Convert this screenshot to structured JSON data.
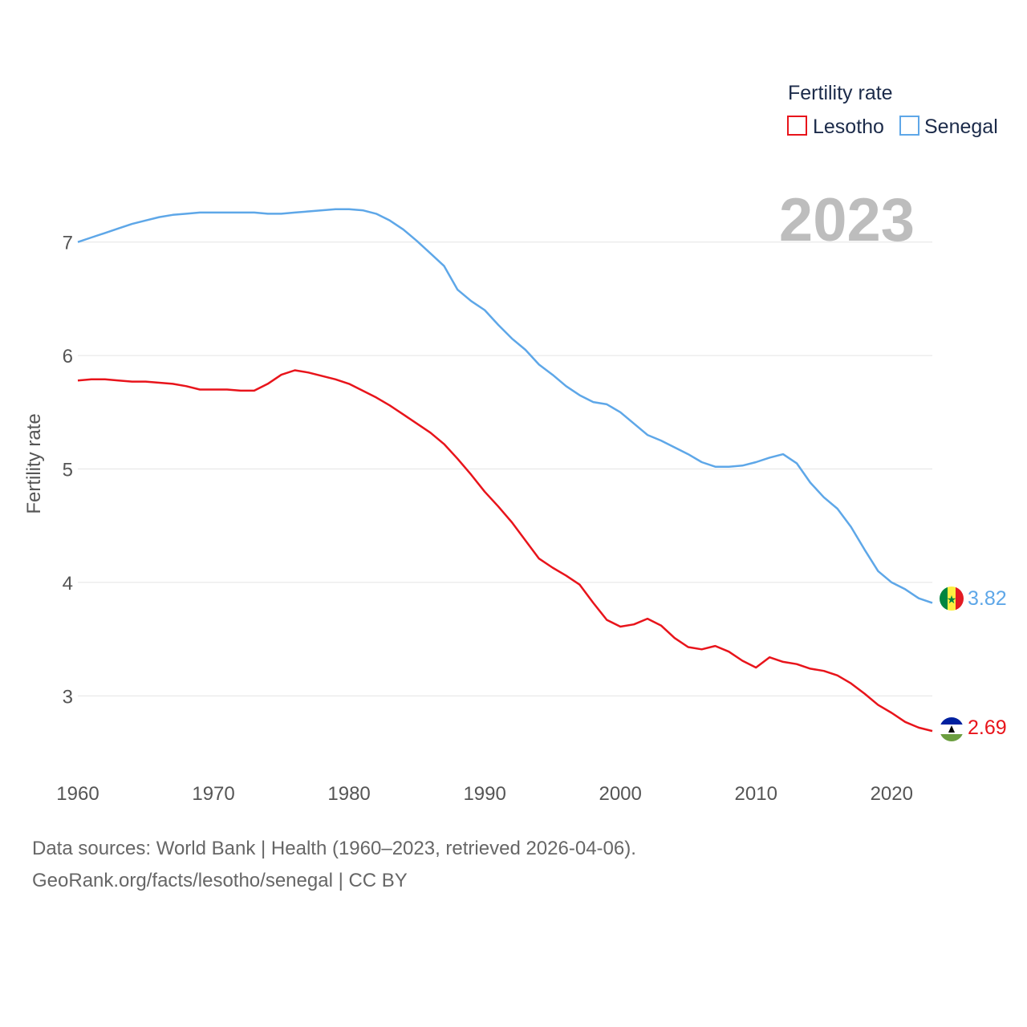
{
  "chart_data": {
    "type": "line",
    "title": "",
    "current_year": "2023",
    "xlabel": "",
    "ylabel": "Fertility rate",
    "xlim": [
      1960,
      2023
    ],
    "ylim": [
      2.5,
      7.5
    ],
    "x_ticks": [
      "1960",
      "1970",
      "1980",
      "1990",
      "2000",
      "2010",
      "2020"
    ],
    "y_ticks": [
      "3",
      "4",
      "5",
      "6",
      "7"
    ],
    "legend": {
      "title": "Fertility rate",
      "placement": "top-right"
    },
    "x": [
      1960,
      1961,
      1962,
      1963,
      1964,
      1965,
      1966,
      1967,
      1968,
      1969,
      1970,
      1971,
      1972,
      1973,
      1974,
      1975,
      1976,
      1977,
      1978,
      1979,
      1980,
      1981,
      1982,
      1983,
      1984,
      1985,
      1986,
      1987,
      1988,
      1989,
      1990,
      1991,
      1992,
      1993,
      1994,
      1995,
      1996,
      1997,
      1998,
      1999,
      2000,
      2001,
      2002,
      2003,
      2004,
      2005,
      2006,
      2007,
      2008,
      2009,
      2010,
      2011,
      2012,
      2013,
      2014,
      2015,
      2016,
      2017,
      2018,
      2019,
      2020,
      2021,
      2022,
      2023
    ],
    "series": [
      {
        "name": "Lesotho",
        "color": "#e8141b",
        "end_label": "2.69",
        "flag": "lesotho-flag-icon",
        "values": [
          5.78,
          5.79,
          5.79,
          5.78,
          5.77,
          5.77,
          5.76,
          5.75,
          5.73,
          5.7,
          5.7,
          5.7,
          5.69,
          5.69,
          5.75,
          5.83,
          5.87,
          5.85,
          5.82,
          5.79,
          5.75,
          5.69,
          5.63,
          5.56,
          5.48,
          5.4,
          5.32,
          5.22,
          5.09,
          4.95,
          4.8,
          4.67,
          4.53,
          4.37,
          4.21,
          4.13,
          4.06,
          3.98,
          3.82,
          3.67,
          3.61,
          3.63,
          3.68,
          3.62,
          3.51,
          3.43,
          3.41,
          3.44,
          3.39,
          3.31,
          3.25,
          3.34,
          3.3,
          3.28,
          3.24,
          3.22,
          3.18,
          3.11,
          3.02,
          2.92,
          2.85,
          2.77,
          2.72,
          2.69
        ]
      },
      {
        "name": "Senegal",
        "color": "#5ea7e8",
        "end_label": "3.82",
        "flag": "senegal-flag-icon",
        "values": [
          7.0,
          7.04,
          7.08,
          7.12,
          7.16,
          7.19,
          7.22,
          7.24,
          7.25,
          7.26,
          7.26,
          7.26,
          7.26,
          7.26,
          7.25,
          7.25,
          7.26,
          7.27,
          7.28,
          7.29,
          7.29,
          7.28,
          7.25,
          7.19,
          7.11,
          7.01,
          6.9,
          6.79,
          6.58,
          6.48,
          6.4,
          6.27,
          6.15,
          6.05,
          5.92,
          5.83,
          5.73,
          5.65,
          5.59,
          5.57,
          5.5,
          5.4,
          5.3,
          5.25,
          5.19,
          5.13,
          5.06,
          5.02,
          5.02,
          5.03,
          5.06,
          5.1,
          5.13,
          5.05,
          4.88,
          4.75,
          4.65,
          4.49,
          4.29,
          4.1,
          4.0,
          3.94,
          3.86,
          3.82
        ]
      }
    ]
  },
  "footer": {
    "line1": "Data sources: World Bank | Health (1960–2023, retrieved 2026-04-06).",
    "line2": "GeoRank.org/facts/lesotho/senegal | CC BY"
  }
}
